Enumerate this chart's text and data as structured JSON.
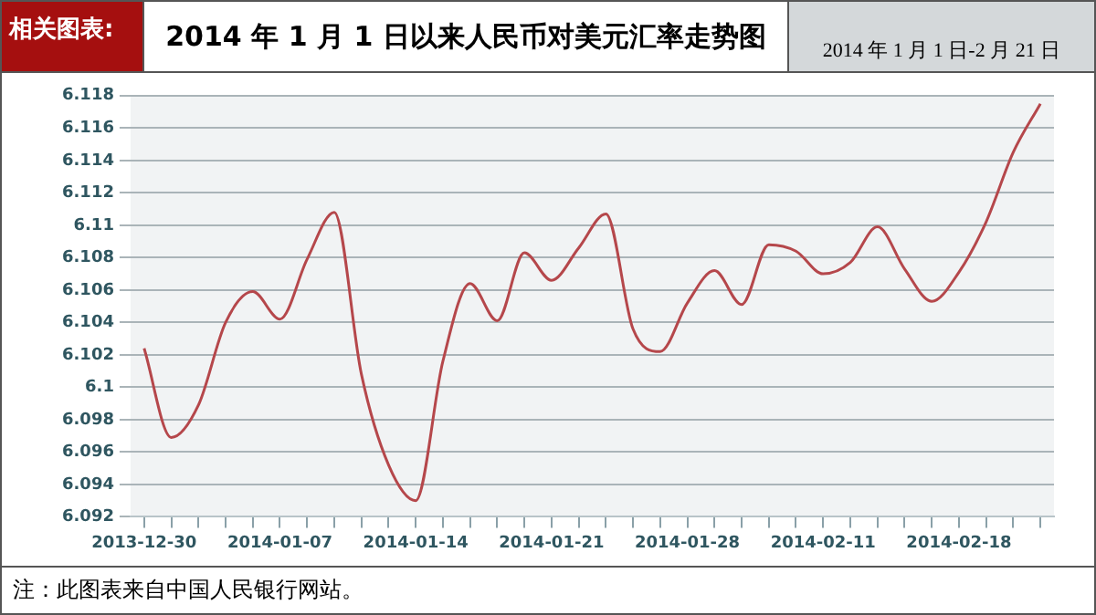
{
  "chart_data": {
    "type": "line",
    "title": "2014 年 1 月 1 日以来人民币对美元汇率走势图",
    "subtitle": "2014 年 1 月 1 日-2 月 21 日",
    "annotations": [
      "相关图表:",
      "注：此图表来自中国人民银行网站。"
    ],
    "categories": [
      "2013-12-30",
      null,
      null,
      null,
      null,
      "2014-01-07",
      null,
      null,
      null,
      null,
      "2014-01-14",
      null,
      null,
      null,
      null,
      "2014-01-21",
      null,
      null,
      null,
      null,
      "2014-01-28",
      null,
      null,
      null,
      null,
      "2014-02-11",
      null,
      null,
      null,
      null,
      "2014-02-18",
      null,
      null,
      null
    ],
    "series": [
      {
        "color": "#b5474b",
        "values": [
          6.1024,
          6.0969,
          6.0989,
          6.104,
          6.1059,
          6.1042,
          6.1079,
          6.1108,
          6.1008,
          6.0952,
          6.093,
          6.1016,
          6.1064,
          6.1041,
          6.1083,
          6.1066,
          6.1086,
          6.1107,
          6.1036,
          6.1022,
          6.1052,
          6.1072,
          6.1051,
          6.1088,
          6.1084,
          6.107,
          6.1077,
          6.1099,
          6.1073,
          6.1053,
          6.1071,
          6.1102,
          6.1145,
          6.1175
        ]
      }
    ],
    "ylim": [
      6.092,
      6.118
    ],
    "yticks": [
      6.092,
      6.094,
      6.096,
      6.098,
      6.1,
      6.102,
      6.104,
      6.106,
      6.108,
      6.11,
      6.112,
      6.114,
      6.116,
      6.118
    ],
    "grid": "y",
    "marker": "none",
    "line_style": "solid",
    "legend": false
  }
}
